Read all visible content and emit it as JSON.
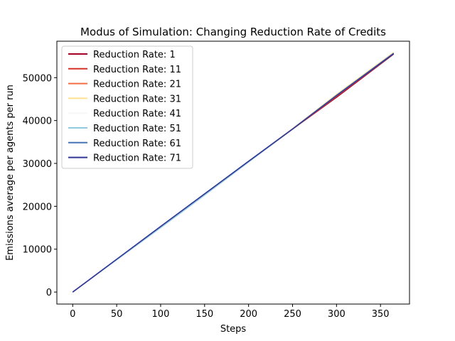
{
  "chart_data": {
    "type": "line",
    "title": "Modus of Simulation: Changing Reduction Rate of Credits",
    "xlabel": "Steps",
    "ylabel": "Emissions average per agents per run",
    "xlim": [
      -18,
      383
    ],
    "ylim": [
      -2800,
      58500
    ],
    "xticks": [
      0,
      50,
      100,
      150,
      200,
      250,
      300,
      350
    ],
    "yticks": [
      0,
      10000,
      20000,
      30000,
      40000,
      50000
    ],
    "grid": false,
    "legend_position": "top-left",
    "x": [
      0,
      50,
      100,
      150,
      200,
      250,
      300,
      365
    ],
    "series": [
      {
        "name": "Reduction Rate: 1",
        "color": "#a50026",
        "values": [
          0,
          7600,
          15200,
          22800,
          30400,
          38000,
          45400,
          55500
        ]
      },
      {
        "name": "Reduction Rate: 11",
        "color": "#d73027",
        "values": [
          0,
          7600,
          15200,
          22800,
          30400,
          38000,
          45600,
          55600
        ]
      },
      {
        "name": "Reduction Rate: 21",
        "color": "#f46d43",
        "values": [
          0,
          7620,
          15240,
          22860,
          30480,
          38100,
          46000,
          55800
        ]
      },
      {
        "name": "Reduction Rate: 31",
        "color": "#fee090",
        "values": [
          0,
          7620,
          15240,
          22860,
          30480,
          38100,
          46100,
          55900
        ]
      },
      {
        "name": "Reduction Rate: 41",
        "color": "#f7f7f7",
        "values": [
          0,
          7600,
          15200,
          22800,
          30400,
          38000,
          45900,
          55700
        ]
      },
      {
        "name": "Reduction Rate: 51",
        "color": "#90c9e0",
        "values": [
          0,
          7500,
          15000,
          22600,
          30300,
          38000,
          45800,
          55600
        ]
      },
      {
        "name": "Reduction Rate: 61",
        "color": "#4575b4",
        "values": [
          0,
          7650,
          15300,
          22900,
          30500,
          38050,
          45900,
          55700
        ]
      },
      {
        "name": "Reduction Rate: 71",
        "color": "#313695",
        "values": [
          0,
          7650,
          15300,
          22900,
          30500,
          38000,
          45800,
          55600
        ]
      }
    ]
  }
}
